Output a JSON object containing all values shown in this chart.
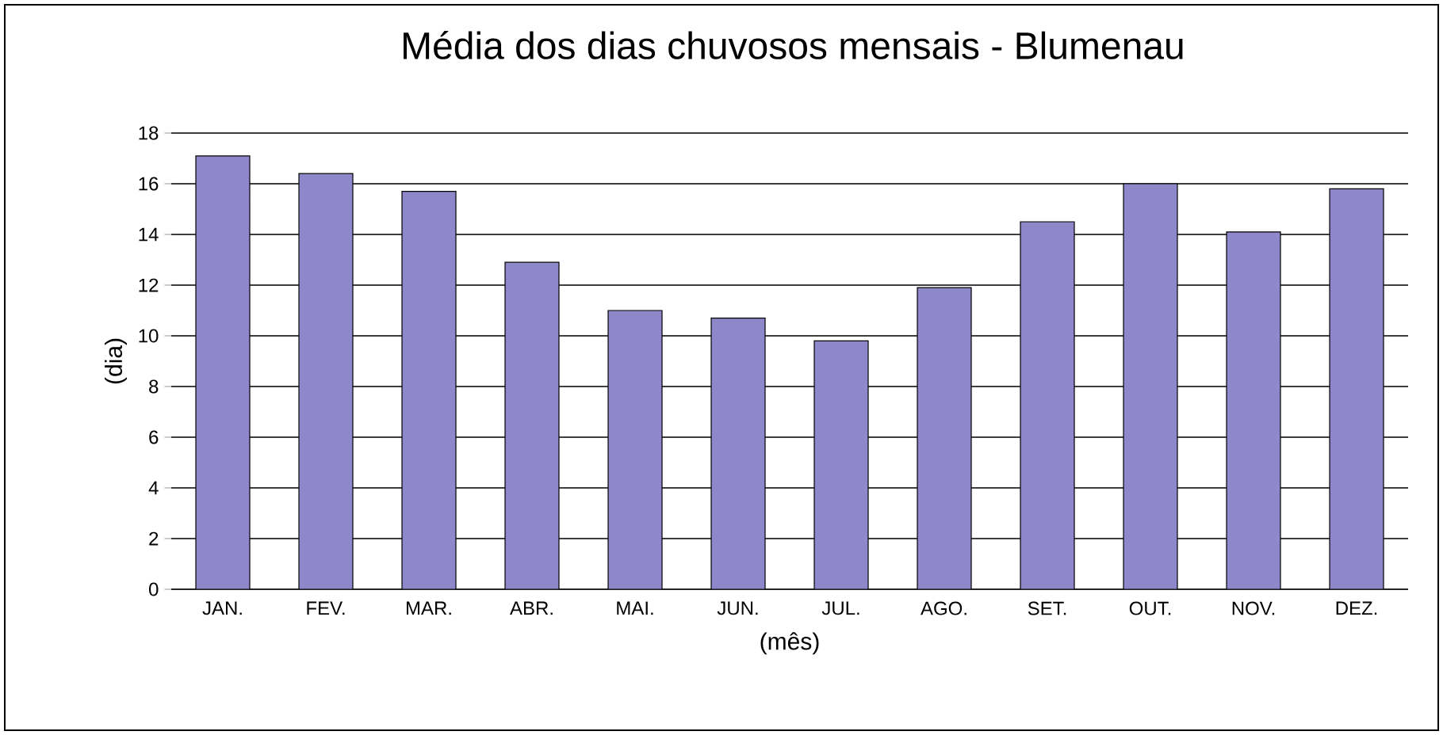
{
  "chart_data": {
    "type": "bar",
    "title": "Média dos dias chuvosos mensais - Blumenau",
    "xlabel": "(mês)",
    "ylabel": "(dia)",
    "categories": [
      "JAN.",
      "FEV.",
      "MAR.",
      "ABR.",
      "MAI.",
      "JUN.",
      "JUL.",
      "AGO.",
      "SET.",
      "OUT.",
      "NOV.",
      "DEZ."
    ],
    "values": [
      17.1,
      16.4,
      15.7,
      12.9,
      11.0,
      10.7,
      9.8,
      11.9,
      14.5,
      16.0,
      14.1,
      15.8
    ],
    "color": "#8e87c9",
    "ylim": [
      0,
      18
    ],
    "yticks": [
      0,
      2,
      4,
      6,
      8,
      10,
      12,
      14,
      16,
      18
    ],
    "grid": "y"
  }
}
